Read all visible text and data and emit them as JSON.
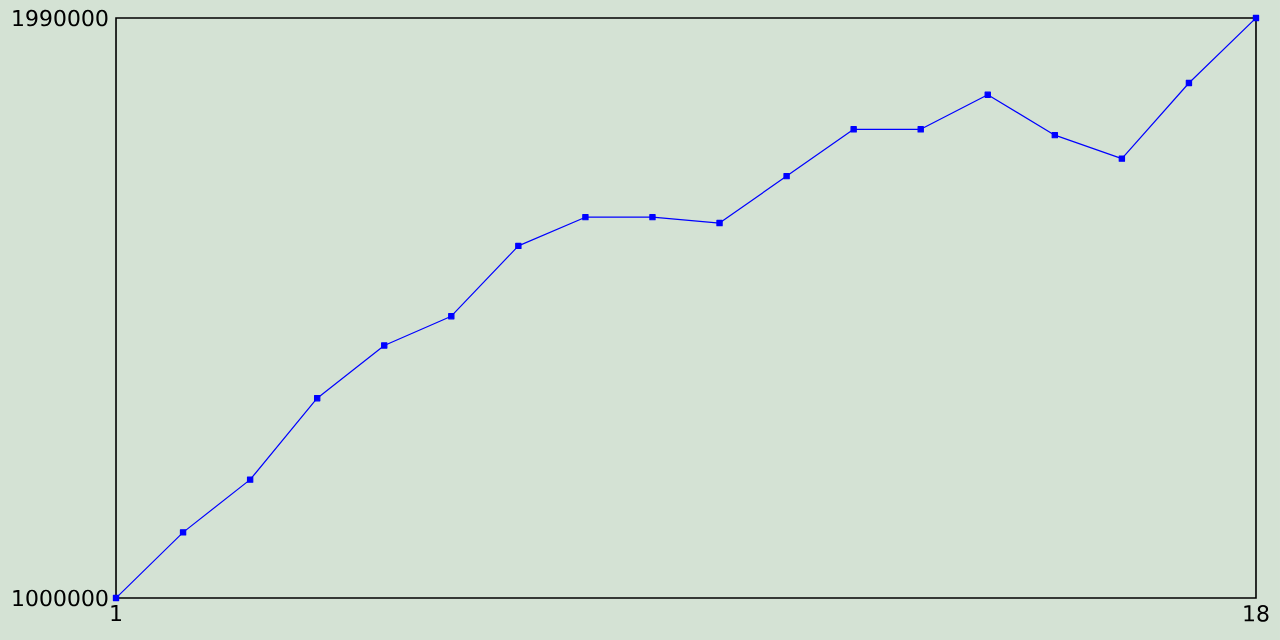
{
  "chart_data": {
    "type": "line",
    "x": [
      1,
      2,
      3,
      4,
      5,
      6,
      7,
      8,
      9,
      10,
      11,
      12,
      13,
      14,
      15,
      16,
      17,
      18
    ],
    "series": [
      {
        "color": "#0000ff",
        "values": [
          1000000,
          1112000,
          1202000,
          1341000,
          1431000,
          1481000,
          1601000,
          1650000,
          1650000,
          1640000,
          1720000,
          1800000,
          1800000,
          1859000,
          1790000,
          1750000,
          1879000,
          1990000
        ]
      }
    ],
    "xlim": [
      1,
      18
    ],
    "xticks": [
      1,
      18
    ],
    "ylim": [
      1000000,
      1990000
    ],
    "yticks": [
      1000000,
      1990000
    ],
    "marker": "square",
    "line_style": "solid"
  }
}
